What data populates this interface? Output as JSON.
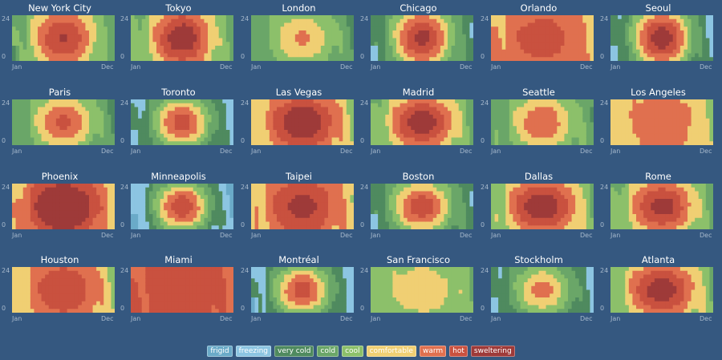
{
  "chart_data": {
    "type": "heatmap",
    "x_tick_labels": [
      "Jan",
      "Dec"
    ],
    "y_tick_labels": [
      "24",
      "0"
    ],
    "legend": [
      {
        "label": "frigid",
        "color": "#6aaac8"
      },
      {
        "label": "freezing",
        "color": "#8cc5e2"
      },
      {
        "label": "very cold",
        "color": "#4f8a5f"
      },
      {
        "label": "cold",
        "color": "#6aa668"
      },
      {
        "label": "cool",
        "color": "#8cc06a"
      },
      {
        "label": "comfortable",
        "color": "#f0cf73"
      },
      {
        "label": "warm",
        "color": "#e0704f"
      },
      {
        "label": "hot",
        "color": "#c9513f"
      },
      {
        "label": "sweltering",
        "color": "#9e3a39"
      }
    ],
    "panels": [
      {
        "city": "New York City",
        "peak": 6.6,
        "base": 3.2,
        "hot_width": 0.5,
        "hot_shape": "vert",
        "cold_left": true
      },
      {
        "city": "Tokyo",
        "peak": 7.2,
        "base": 3.5,
        "hot_width": 0.45,
        "hot_shape": "vert",
        "cold_left": false
      },
      {
        "city": "London",
        "peak": 5.3,
        "base": 2.8,
        "hot_width": 0.5,
        "hot_shape": "round",
        "cold_left": false
      },
      {
        "city": "Chicago",
        "peak": 6.5,
        "base": 2.0,
        "hot_width": 0.45,
        "hot_shape": "vert",
        "cold_left": true
      },
      {
        "city": "Orlando",
        "peak": 7.2,
        "base": 5.2,
        "hot_width": 0.85,
        "hot_shape": "horiz",
        "cold_left": false
      },
      {
        "city": "Seoul",
        "peak": 6.6,
        "base": 1.6,
        "hot_width": 0.45,
        "hot_shape": "vert",
        "cold_left": true
      },
      {
        "city": "Paris",
        "peak": 6.2,
        "base": 2.8,
        "hot_width": 0.45,
        "hot_shape": "round",
        "cold_left": false
      },
      {
        "city": "Toronto",
        "peak": 6.2,
        "base": 1.4,
        "hot_width": 0.45,
        "hot_shape": "round",
        "cold_left": true
      },
      {
        "city": "Las Vegas",
        "peak": 8.0,
        "base": 4.6,
        "hot_width": 0.65,
        "hot_shape": "round",
        "cold_left": false
      },
      {
        "city": "Madrid",
        "peak": 7.6,
        "base": 3.4,
        "hot_width": 0.6,
        "hot_shape": "round",
        "cold_left": false
      },
      {
        "city": "Seattle",
        "peak": 6.0,
        "base": 3.0,
        "hot_width": 0.45,
        "hot_shape": "round",
        "cold_left": false
      },
      {
        "city": "Los Angeles",
        "peak": 6.6,
        "base": 4.6,
        "hot_width": 0.75,
        "hot_shape": "horiz",
        "cold_left": false
      },
      {
        "city": "Phoenix",
        "peak": 8.2,
        "base": 5.0,
        "hot_width": 0.75,
        "hot_shape": "vert",
        "cold_left": false
      },
      {
        "city": "Minneapolis",
        "peak": 6.4,
        "base": 0.8,
        "hot_width": 0.45,
        "hot_shape": "round",
        "cold_left": true
      },
      {
        "city": "Taipei",
        "peak": 7.2,
        "base": 5.0,
        "hot_width": 0.65,
        "hot_shape": "vert",
        "cold_left": false
      },
      {
        "city": "Boston",
        "peak": 6.5,
        "base": 2.0,
        "hot_width": 0.45,
        "hot_shape": "round",
        "cold_left": true
      },
      {
        "city": "Dallas",
        "peak": 7.8,
        "base": 3.8,
        "hot_width": 0.65,
        "hot_shape": "round",
        "cold_left": false
      },
      {
        "city": "Rome",
        "peak": 7.4,
        "base": 3.4,
        "hot_width": 0.55,
        "hot_shape": "round",
        "cold_left": false
      },
      {
        "city": "Houston",
        "peak": 7.8,
        "base": 4.6,
        "hot_width": 0.7,
        "hot_shape": "horiz",
        "cold_left": false
      },
      {
        "city": "Miami",
        "peak": 7.4,
        "base": 6.2,
        "hot_width": 1.0,
        "hot_shape": "horiz",
        "cold_left": false
      },
      {
        "city": "Montréal",
        "peak": 6.2,
        "base": 1.2,
        "hot_width": 0.45,
        "hot_shape": "round",
        "cold_left": true
      },
      {
        "city": "San Francisco",
        "peak": 5.0,
        "base": 3.8,
        "hot_width": 0.9,
        "hot_shape": "horiz",
        "cold_left": false
      },
      {
        "city": "Stockholm",
        "peak": 5.4,
        "base": 1.6,
        "hot_width": 0.45,
        "hot_shape": "round",
        "cold_left": true
      },
      {
        "city": "Atlanta",
        "peak": 7.6,
        "base": 3.8,
        "hot_width": 0.6,
        "hot_shape": "round",
        "cold_left": false
      }
    ]
  }
}
